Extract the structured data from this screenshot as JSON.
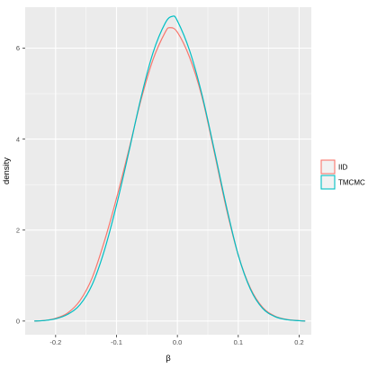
{
  "chart_data": {
    "type": "line",
    "title": "",
    "xlabel": "β",
    "ylabel": "density",
    "xlim": [
      -0.25,
      0.22
    ],
    "ylim": [
      -0.3,
      6.9
    ],
    "x_ticks": [
      -0.2,
      -0.1,
      0.0,
      0.1,
      0.2
    ],
    "x_tick_labels": [
      "-0.2",
      "-0.1",
      "0.0",
      "0.1",
      "0.2"
    ],
    "y_ticks": [
      0,
      2,
      4,
      6
    ],
    "y_tick_labels": [
      "0",
      "2",
      "4",
      "6"
    ],
    "grid": true,
    "legend_position": "right",
    "series": [
      {
        "name": "IID",
        "color": "#F8766D",
        "x": [
          -0.235,
          -0.22,
          -0.2,
          -0.18,
          -0.16,
          -0.14,
          -0.12,
          -0.1,
          -0.08,
          -0.06,
          -0.04,
          -0.02,
          -0.012,
          0.0,
          0.02,
          0.04,
          0.06,
          0.08,
          0.1,
          0.12,
          0.14,
          0.16,
          0.18,
          0.2,
          0.21
        ],
        "y": [
          0.0,
          0.01,
          0.06,
          0.18,
          0.45,
          0.95,
          1.75,
          2.7,
          3.75,
          4.85,
          5.75,
          6.35,
          6.45,
          6.35,
          5.8,
          4.95,
          3.75,
          2.5,
          1.45,
          0.72,
          0.3,
          0.11,
          0.035,
          0.01,
          0.0
        ]
      },
      {
        "name": "TMCMC",
        "color": "#00BFC4",
        "x": [
          -0.235,
          -0.22,
          -0.2,
          -0.18,
          -0.16,
          -0.14,
          -0.12,
          -0.1,
          -0.08,
          -0.06,
          -0.04,
          -0.02,
          -0.008,
          0.0,
          0.02,
          0.04,
          0.06,
          0.08,
          0.1,
          0.12,
          0.14,
          0.16,
          0.18,
          0.2,
          0.21
        ],
        "y": [
          0.0,
          0.01,
          0.05,
          0.15,
          0.36,
          0.8,
          1.55,
          2.55,
          3.7,
          4.9,
          5.9,
          6.55,
          6.7,
          6.6,
          5.95,
          5.0,
          3.8,
          2.55,
          1.45,
          0.7,
          0.28,
          0.1,
          0.03,
          0.008,
          0.0
        ]
      }
    ]
  },
  "legend": {
    "items": [
      {
        "label": "IID",
        "color": "#F8766D"
      },
      {
        "label": "TMCMC",
        "color": "#00BFC4"
      }
    ]
  },
  "colors": {
    "panel_background": "#EBEBEB",
    "grid_major": "#FFFFFF"
  }
}
